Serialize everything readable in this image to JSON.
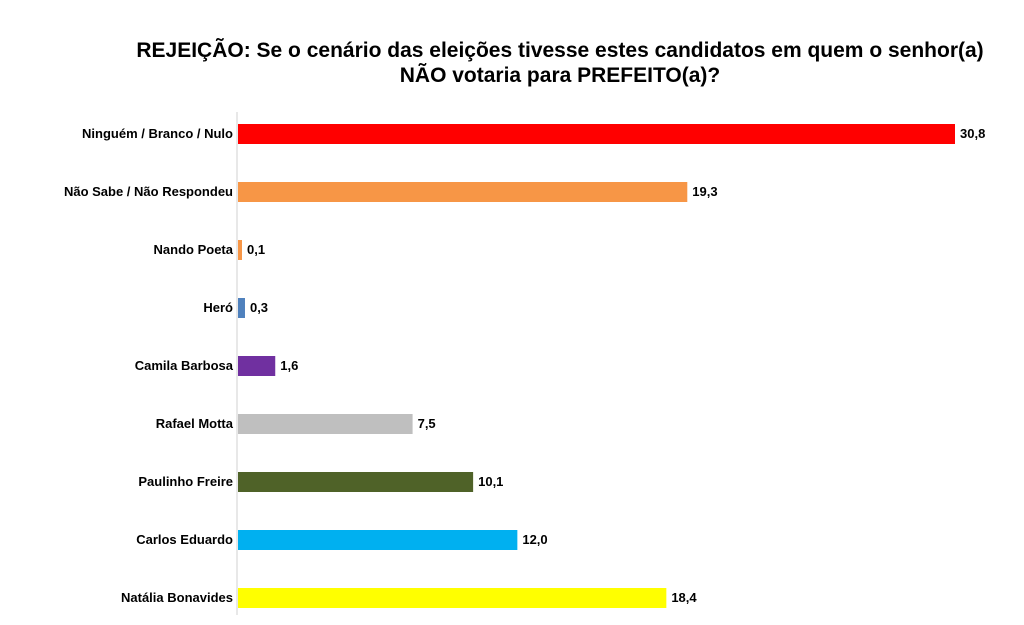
{
  "chart_data": {
    "type": "bar",
    "orientation": "horizontal",
    "title_line1": "REJEIÇÃO: Se o cenário das eleições tivesse estes candidatos em quem o senhor(a)",
    "title_line2": "NÃO votaria para PREFEITO(a)?",
    "categories": [
      "Ninguém / Branco / Nulo",
      "Não Sabe / Não Respondeu",
      "Nando Poeta",
      "Heró",
      "Camila Barbosa",
      "Rafael Motta",
      "Paulinho Freire",
      "Carlos Eduardo",
      "Natália Bonavides"
    ],
    "values": [
      30.8,
      19.3,
      0.1,
      0.3,
      1.6,
      7.5,
      10.1,
      12.0,
      18.4
    ],
    "value_labels": [
      "30,8",
      "19,3",
      "0,1",
      "0,3",
      "1,6",
      "7,5",
      "10,1",
      "12,0",
      "18,4"
    ],
    "colors": [
      "#ff0000",
      "#f79646",
      "#f79646",
      "#4f81bd",
      "#7030a0",
      "#bfbfbf",
      "#4f6228",
      "#00b0f0",
      "#ffff00"
    ],
    "xlim": [
      0,
      31
    ],
    "grid": false,
    "legend": "none"
  }
}
